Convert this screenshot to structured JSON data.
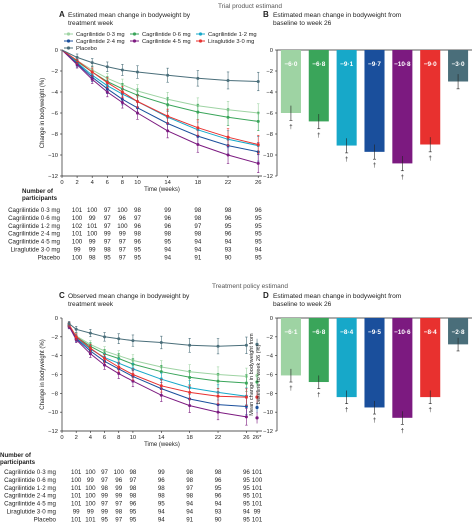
{
  "section_titles": {
    "top": "Trial product estimand",
    "bottom": "Treatment policy estimand"
  },
  "colors": {
    "Cagrilintide 0·3 mg": "#9ed3a3",
    "Cagrilintide 0·6 mg": "#3aa55a",
    "Cagrilintide 1·2 mg": "#17a8c9",
    "Cagrilintide 2·4 mg": "#1a4f9c",
    "Cagrilintide 4·5 mg": "#7c1a80",
    "Liraglutide 3·0 mg": "#e8312f",
    "Placebo": "#4a6e7a"
  },
  "groups": [
    "Cagrilintide 0·3 mg",
    "Cagrilintide 0·6 mg",
    "Cagrilintide 1·2 mg",
    "Cagrilintide 2·4 mg",
    "Cagrilintide 4·5 mg",
    "Liraglutide 3·0 mg",
    "Placebo"
  ],
  "participants_header": [
    "Number of",
    "participants"
  ],
  "chart_data": [
    {
      "id": "A",
      "type": "line",
      "letter": "A",
      "title_lines": [
        "Estimated mean change in bodyweight by",
        "treatment week"
      ],
      "xlabel": "Time (weeks)",
      "ylabel": "Change in bodyweight (%)",
      "x": [
        0,
        2,
        4,
        6,
        8,
        10,
        14,
        18,
        22,
        26
      ],
      "xticks": [
        "0",
        "2",
        "4",
        "6",
        "8",
        "10",
        "14",
        "18",
        "22",
        "26"
      ],
      "ylim": [
        -12,
        0
      ],
      "yticks": [
        "0",
        "−2",
        "−4",
        "−6",
        "−8",
        "−10",
        "−12"
      ],
      "legend": "top-left",
      "series": [
        {
          "name": "Cagrilintide 0·3 mg",
          "values": [
            0,
            -1.0,
            -1.9,
            -2.7,
            -3.3,
            -3.9,
            -4.7,
            -5.3,
            -5.7,
            -6.0
          ]
        },
        {
          "name": "Cagrilintide 0·6 mg",
          "values": [
            0,
            -1.1,
            -2.1,
            -3.0,
            -3.7,
            -4.3,
            -5.2,
            -5.9,
            -6.4,
            -6.8
          ]
        },
        {
          "name": "Cagrilintide 1·2 mg",
          "values": [
            0,
            -1.2,
            -2.4,
            -3.4,
            -4.2,
            -4.9,
            -6.4,
            -7.6,
            -8.5,
            -9.1
          ]
        },
        {
          "name": "Cagrilintide 2·4 mg",
          "values": [
            0,
            -1.3,
            -2.6,
            -3.7,
            -4.7,
            -5.5,
            -7.0,
            -8.2,
            -9.1,
            -9.7
          ]
        },
        {
          "name": "Cagrilintide 4·5 mg",
          "values": [
            0,
            -1.4,
            -2.8,
            -4.0,
            -5.0,
            -6.0,
            -7.7,
            -9.0,
            -10.0,
            -10.8
          ]
        },
        {
          "name": "Liraglutide 3·0 mg",
          "values": [
            0,
            -1.0,
            -2.1,
            -3.1,
            -4.0,
            -4.9,
            -6.3,
            -7.4,
            -8.3,
            -9.0
          ]
        },
        {
          "name": "Placebo",
          "values": [
            0,
            -0.7,
            -1.2,
            -1.6,
            -1.9,
            -2.1,
            -2.4,
            -2.7,
            -2.9,
            -3.0
          ]
        }
      ],
      "participants": [
        [
          "101",
          "100",
          "97",
          "100",
          "98",
          "99",
          "98",
          "98",
          "96"
        ],
        [
          "100",
          "99",
          "97",
          "96",
          "97",
          "96",
          "98",
          "96",
          "95"
        ],
        [
          "102",
          "101",
          "97",
          "100",
          "96",
          "96",
          "97",
          "95",
          "95"
        ],
        [
          "101",
          "100",
          "99",
          "99",
          "98",
          "98",
          "98",
          "96",
          "95"
        ],
        [
          "100",
          "99",
          "97",
          "97",
          "96",
          "95",
          "94",
          "94",
          "95"
        ],
        [
          "99",
          "99",
          "98",
          "97",
          "95",
          "94",
          "94",
          "93",
          "94"
        ],
        [
          "100",
          "98",
          "95",
          "97",
          "95",
          "94",
          "91",
          "90",
          "95"
        ]
      ]
    },
    {
      "id": "B",
      "type": "bar",
      "letter": "B",
      "title_lines": [
        "Estimated mean change in bodyweight from",
        "baseline to week 26"
      ],
      "ylim": [
        -12,
        0
      ],
      "yticks": [
        "0",
        "−2",
        "−4",
        "−6",
        "−8",
        "−10",
        "−12"
      ],
      "values": [
        -6.0,
        -6.8,
        -9.1,
        -9.7,
        -10.8,
        -9.0,
        -3.0
      ],
      "value_labels": [
        "−6·0",
        "−6·8",
        "−9·1",
        "−9·7",
        "−10·8",
        "−9·0",
        "−3·0"
      ],
      "significance": [
        "†",
        "†",
        "†",
        "†",
        "†",
        "†",
        ""
      ]
    },
    {
      "id": "C",
      "type": "line",
      "letter": "C",
      "title_lines": [
        "Observed mean change in bodyweight by",
        "treatment week"
      ],
      "xlabel": "Time (weeks)",
      "ylabel": "Change in bodyweight (%)",
      "x": [
        1,
        2,
        4,
        6,
        8,
        10,
        14,
        18,
        22,
        26
      ],
      "xticks": [
        "0",
        "2",
        "4",
        "6",
        "8",
        "10",
        "14",
        "18",
        "22",
        "26",
        "26*"
      ],
      "ylim": [
        -12,
        0
      ],
      "yticks": [
        "0",
        "−2",
        "−4",
        "−6",
        "−8",
        "−10",
        "−12"
      ],
      "series": [
        {
          "name": "Cagrilintide 0·3 mg",
          "values": [
            -0.8,
            -1.9,
            -2.8,
            -3.5,
            -4.0,
            -4.5,
            -5.2,
            -5.7,
            -6.0,
            -6.2
          ]
        },
        {
          "name": "Cagrilintide 0·6 mg",
          "values": [
            -0.8,
            -2.0,
            -3.0,
            -3.8,
            -4.3,
            -4.9,
            -5.7,
            -6.3,
            -6.7,
            -6.9
          ]
        },
        {
          "name": "Cagrilintide 1·2 mg",
          "values": [
            -0.8,
            -2.1,
            -3.3,
            -4.2,
            -4.8,
            -5.4,
            -6.5,
            -7.4,
            -7.9,
            -8.3
          ]
        },
        {
          "name": "Cagrilintide 2·4 mg",
          "values": [
            -0.8,
            -2.2,
            -3.5,
            -4.6,
            -5.4,
            -6.2,
            -7.5,
            -8.6,
            -9.2,
            -9.4
          ]
        },
        {
          "name": "Cagrilintide 4·5 mg",
          "values": [
            -0.9,
            -2.3,
            -3.8,
            -5.0,
            -5.9,
            -6.7,
            -8.2,
            -9.3,
            -10.0,
            -10.5
          ]
        },
        {
          "name": "Liraglutide 3·0 mg",
          "values": [
            -0.7,
            -2.0,
            -3.2,
            -4.3,
            -5.2,
            -6.0,
            -7.2,
            -7.9,
            -8.3,
            -8.4
          ]
        },
        {
          "name": "Placebo",
          "values": [
            -0.6,
            -1.2,
            -1.6,
            -2.0,
            -2.2,
            -2.4,
            -2.6,
            -2.9,
            -3.0,
            -2.9
          ]
        }
      ],
      "endpoint_x": 27.5,
      "endpoint_values": [
        -6.1,
        -6.8,
        -8.4,
        -9.5,
        -10.6,
        -8.4,
        -2.8
      ],
      "participants": [
        [
          "101",
          "100",
          "97",
          "100",
          "98",
          "99",
          "98",
          "98",
          "96",
          "101"
        ],
        [
          "100",
          "99",
          "97",
          "96",
          "97",
          "96",
          "98",
          "96",
          "95",
          "100"
        ],
        [
          "101",
          "100",
          "98",
          "99",
          "98",
          "98",
          "97",
          "95",
          "95",
          "101"
        ],
        [
          "101",
          "100",
          "99",
          "99",
          "98",
          "98",
          "98",
          "96",
          "95",
          "101"
        ],
        [
          "101",
          "100",
          "97",
          "97",
          "96",
          "95",
          "94",
          "94",
          "95",
          "101"
        ],
        [
          "99",
          "99",
          "99",
          "98",
          "95",
          "94",
          "94",
          "93",
          "94",
          "99"
        ],
        [
          "101",
          "101",
          "95",
          "97",
          "95",
          "94",
          "91",
          "90",
          "95",
          "101"
        ]
      ]
    },
    {
      "id": "D",
      "type": "bar",
      "letter": "D",
      "title_lines": [
        "Estimated mean change in bodyweight from",
        "baseline to week 26"
      ],
      "ylabel_lines": [
        "Mean change in bodyweight from",
        "baseline to week 26 (%)"
      ],
      "ylim": [
        -12,
        0
      ],
      "yticks": [
        "0",
        "−2",
        "−4",
        "−6",
        "−8",
        "−10",
        "−12"
      ],
      "values": [
        -6.1,
        -6.8,
        -8.4,
        -9.5,
        -10.6,
        -8.4,
        -2.8
      ],
      "value_labels": [
        "−6·1",
        "−6·8",
        "−8·4",
        "−9·5",
        "−10·6",
        "−8·4",
        "−2·8"
      ],
      "significance": [
        "†",
        "†",
        "†",
        "†",
        "†",
        "†",
        ""
      ]
    }
  ]
}
